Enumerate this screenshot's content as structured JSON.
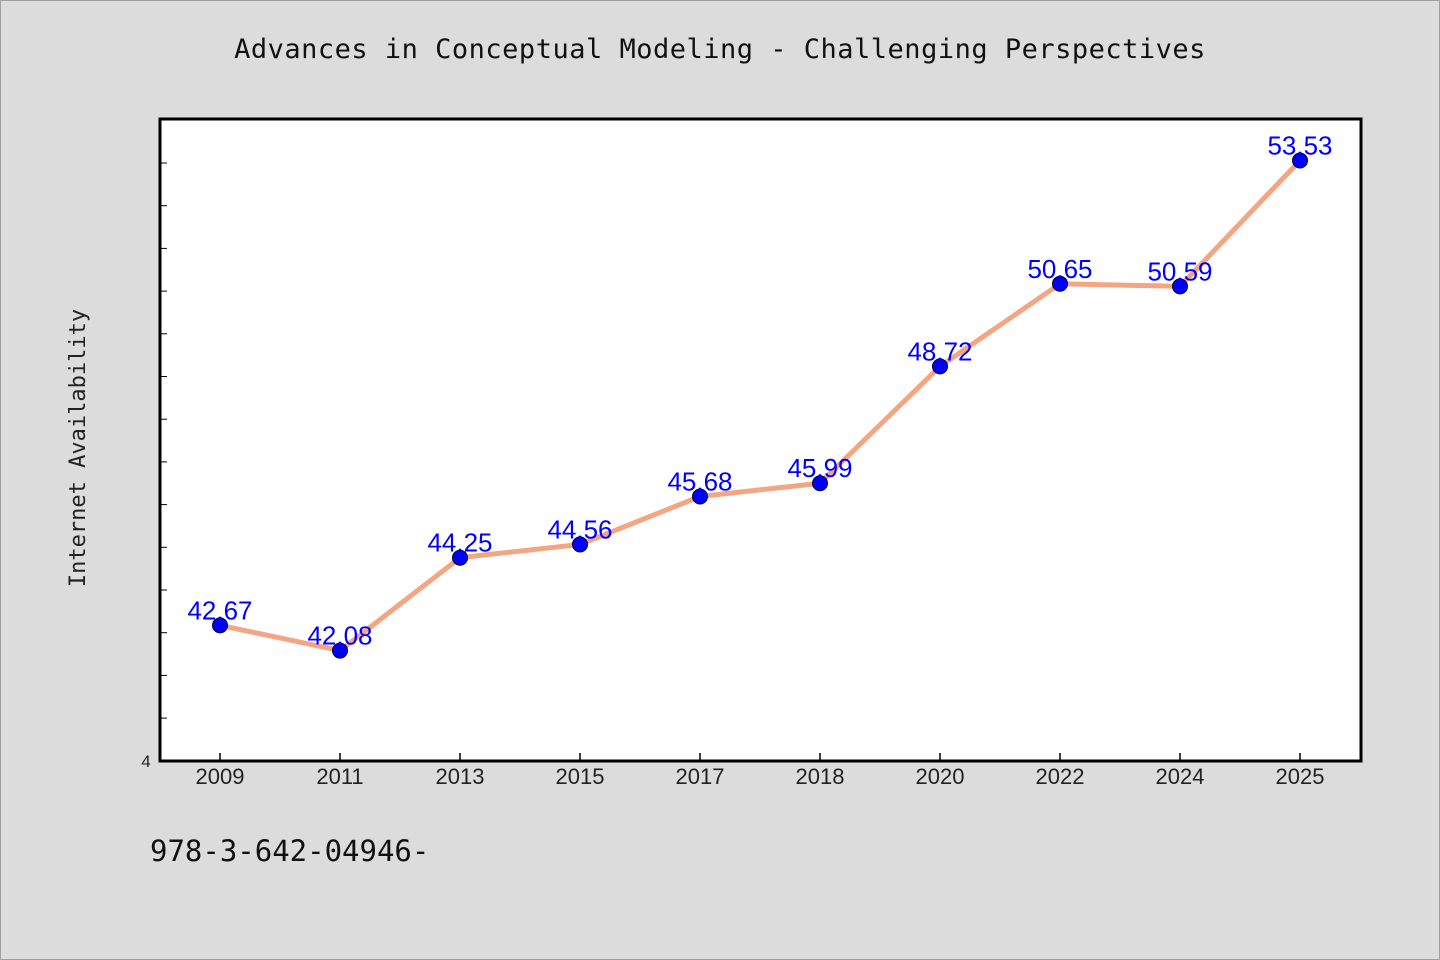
{
  "title": "Advances in Conceptual Modeling - Challenging Perspectives",
  "footer": "978-3-642-04946-",
  "chart_data": {
    "type": "line",
    "title": "Advances in Conceptual Modeling - Challenging Perspectives",
    "xlabel": "",
    "ylabel": "Internet Availability",
    "categories": [
      "2009",
      "2011",
      "2013",
      "2015",
      "2017",
      "2018",
      "2020",
      "2022",
      "2024",
      "2025"
    ],
    "values": [
      42.67,
      42.08,
      44.25,
      44.56,
      45.68,
      45.99,
      48.72,
      50.65,
      50.59,
      53.53
    ],
    "data_labels": [
      "42.67",
      "42.08",
      "44.25",
      "44.56",
      "45.68",
      "45.99",
      "48.72",
      "50.65",
      "50.59",
      "53.53"
    ],
    "ylim": [
      39.5,
      54.5
    ],
    "y_tick_labels": [
      "4"
    ],
    "grid": false,
    "legend": "none",
    "line_color": "#f4a582",
    "marker_color": "#0000ff",
    "label_color": "#0000ff",
    "background": "#dcdcdc",
    "plot_background": "#ffffff"
  }
}
